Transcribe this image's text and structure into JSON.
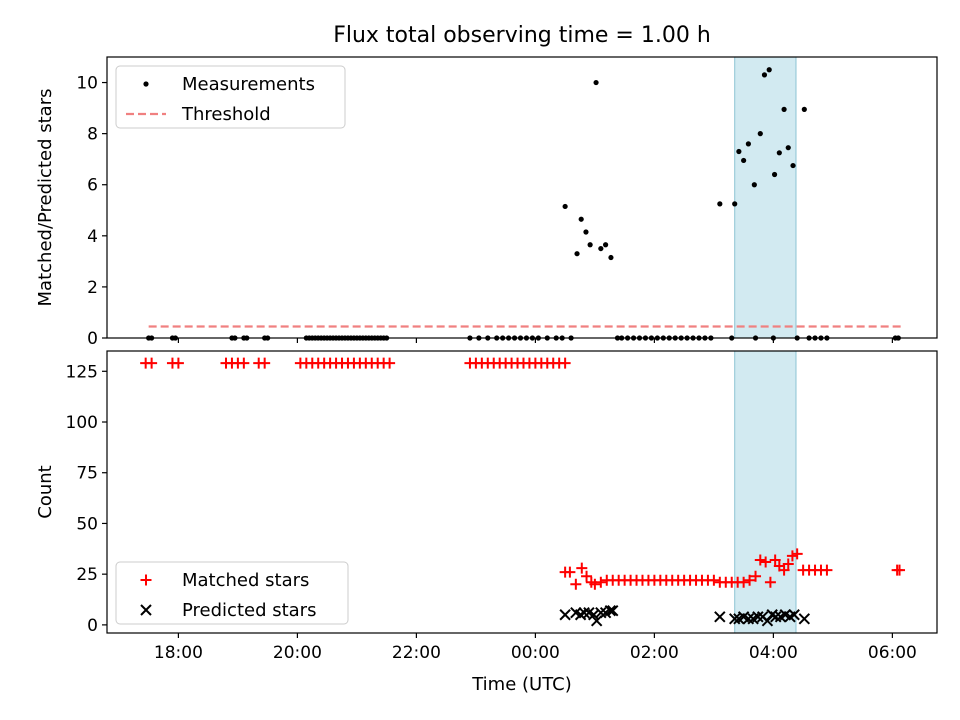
{
  "chart_data": {
    "type": "scatter",
    "title": "Flux total observing time = 1.00 h",
    "xlabel": "Time (UTC)",
    "x_unit": "hours since 00:00 UTC",
    "xlim": [
      -7.2,
      6.75
    ],
    "x_ticks": [
      {
        "value": -6,
        "label": "18:00"
      },
      {
        "value": -4,
        "label": "20:00"
      },
      {
        "value": -2,
        "label": "22:00"
      },
      {
        "value": 0,
        "label": "00:00"
      },
      {
        "value": 2,
        "label": "02:00"
      },
      {
        "value": 4,
        "label": "04:00"
      },
      {
        "value": 6,
        "label": "06:00"
      }
    ],
    "highlight_band": {
      "x_start": 3.35,
      "x_end": 4.38,
      "color": "#add8e6"
    },
    "panels": [
      {
        "name": "ratio",
        "ylabel": "Matched/Predicted stars",
        "ylim": [
          0,
          11
        ],
        "y_ticks": [
          0,
          2,
          4,
          6,
          8,
          10
        ],
        "legend": [
          "Measurements",
          "Threshold"
        ],
        "legend_position": "upper left",
        "threshold": {
          "value": 0.45,
          "x_start": -6.5,
          "x_end": 6.15,
          "color": "#f08080",
          "style": "dashed"
        },
        "series": [
          {
            "name": "Measurements",
            "marker": "dot",
            "color": "#000000",
            "points": [
              [
                -6.5,
                0
              ],
              [
                -6.45,
                0
              ],
              [
                -6.1,
                0
              ],
              [
                -6.05,
                0
              ],
              [
                -5.1,
                0
              ],
              [
                -5.05,
                0
              ],
              [
                -4.9,
                0
              ],
              [
                -4.85,
                0
              ],
              [
                -4.55,
                0
              ],
              [
                -4.5,
                0
              ],
              [
                -3.85,
                0
              ],
              [
                -3.8,
                0
              ],
              [
                -3.75,
                0
              ],
              [
                -3.7,
                0
              ],
              [
                -3.65,
                0
              ],
              [
                -3.6,
                0
              ],
              [
                -3.55,
                0
              ],
              [
                -3.5,
                0
              ],
              [
                -3.45,
                0
              ],
              [
                -3.4,
                0
              ],
              [
                -3.35,
                0
              ],
              [
                -3.3,
                0
              ],
              [
                -3.25,
                0
              ],
              [
                -3.2,
                0
              ],
              [
                -3.15,
                0
              ],
              [
                -3.1,
                0
              ],
              [
                -3.05,
                0
              ],
              [
                -3.0,
                0
              ],
              [
                -2.95,
                0
              ],
              [
                -2.9,
                0
              ],
              [
                -2.85,
                0
              ],
              [
                -2.8,
                0
              ],
              [
                -2.75,
                0
              ],
              [
                -2.7,
                0
              ],
              [
                -2.65,
                0
              ],
              [
                -2.6,
                0
              ],
              [
                -2.55,
                0
              ],
              [
                -2.5,
                0
              ],
              [
                -1.1,
                0
              ],
              [
                -0.95,
                0
              ],
              [
                -0.8,
                0
              ],
              [
                -0.65,
                0
              ],
              [
                -0.55,
                0
              ],
              [
                -0.45,
                0
              ],
              [
                -0.35,
                0
              ],
              [
                -0.25,
                0
              ],
              [
                -0.15,
                0
              ],
              [
                -0.05,
                0
              ],
              [
                0.05,
                0
              ],
              [
                0.2,
                0
              ],
              [
                0.35,
                0
              ],
              [
                0.45,
                0
              ],
              [
                0.6,
                0
              ],
              [
                0.5,
                5.15
              ],
              [
                0.7,
                3.3
              ],
              [
                0.77,
                4.65
              ],
              [
                0.85,
                4.15
              ],
              [
                0.92,
                3.65
              ],
              [
                1.02,
                10.0
              ],
              [
                1.1,
                3.5
              ],
              [
                1.18,
                3.65
              ],
              [
                1.27,
                3.15
              ],
              [
                1.38,
                0
              ],
              [
                1.45,
                0
              ],
              [
                1.55,
                0
              ],
              [
                1.65,
                0
              ],
              [
                1.75,
                0
              ],
              [
                1.85,
                0
              ],
              [
                1.95,
                0
              ],
              [
                2.05,
                0
              ],
              [
                2.15,
                0
              ],
              [
                2.25,
                0
              ],
              [
                2.35,
                0
              ],
              [
                2.45,
                0
              ],
              [
                2.55,
                0
              ],
              [
                2.65,
                0
              ],
              [
                2.75,
                0
              ],
              [
                2.85,
                0
              ],
              [
                2.95,
                0
              ],
              [
                3.1,
                5.25
              ],
              [
                3.35,
                5.25
              ],
              [
                3.42,
                7.3
              ],
              [
                3.5,
                6.95
              ],
              [
                3.58,
                7.6
              ],
              [
                3.68,
                6.0
              ],
              [
                3.78,
                8.0
              ],
              [
                3.85,
                10.3
              ],
              [
                3.93,
                10.5
              ],
              [
                4.02,
                6.4
              ],
              [
                4.1,
                7.25
              ],
              [
                4.18,
                8.95
              ],
              [
                4.25,
                7.45
              ],
              [
                4.33,
                6.75
              ],
              [
                4.52,
                8.95
              ],
              [
                3.3,
                0
              ],
              [
                3.7,
                0
              ],
              [
                4.0,
                0
              ],
              [
                4.4,
                0
              ],
              [
                4.6,
                0
              ],
              [
                4.7,
                0
              ],
              [
                4.8,
                0
              ],
              [
                4.9,
                0
              ],
              [
                6.05,
                0
              ],
              [
                6.1,
                0
              ]
            ]
          }
        ]
      },
      {
        "name": "counts",
        "ylabel": "Count",
        "ylim": [
          -4,
          135
        ],
        "y_ticks": [
          0,
          25,
          50,
          75,
          100,
          125
        ],
        "legend": [
          "Matched stars",
          "Predicted stars"
        ],
        "legend_position": "lower left",
        "series": [
          {
            "name": "Matched stars",
            "marker": "plus",
            "color": "#ff0000",
            "points": [
              [
                -6.55,
                129
              ],
              [
                -6.45,
                129
              ],
              [
                -6.1,
                129
              ],
              [
                -6.0,
                129
              ],
              [
                -5.2,
                129
              ],
              [
                -5.1,
                129
              ],
              [
                -5.0,
                129
              ],
              [
                -4.9,
                129
              ],
              [
                -4.65,
                129
              ],
              [
                -4.55,
                129
              ],
              [
                -3.95,
                129
              ],
              [
                -3.85,
                129
              ],
              [
                -3.75,
                129
              ],
              [
                -3.65,
                129
              ],
              [
                -3.55,
                129
              ],
              [
                -3.45,
                129
              ],
              [
                -3.35,
                129
              ],
              [
                -3.25,
                129
              ],
              [
                -3.15,
                129
              ],
              [
                -3.05,
                129
              ],
              [
                -2.95,
                129
              ],
              [
                -2.85,
                129
              ],
              [
                -2.75,
                129
              ],
              [
                -2.65,
                129
              ],
              [
                -2.55,
                129
              ],
              [
                -2.45,
                129
              ],
              [
                -1.1,
                129
              ],
              [
                -1.0,
                129
              ],
              [
                -0.9,
                129
              ],
              [
                -0.8,
                129
              ],
              [
                -0.7,
                129
              ],
              [
                -0.6,
                129
              ],
              [
                -0.5,
                129
              ],
              [
                -0.4,
                129
              ],
              [
                -0.3,
                129
              ],
              [
                -0.2,
                129
              ],
              [
                -0.1,
                129
              ],
              [
                0.0,
                129
              ],
              [
                0.1,
                129
              ],
              [
                0.2,
                129
              ],
              [
                0.3,
                129
              ],
              [
                0.4,
                129
              ],
              [
                0.5,
                129
              ],
              [
                0.5,
                26
              ],
              [
                0.58,
                26
              ],
              [
                0.68,
                20
              ],
              [
                0.78,
                28
              ],
              [
                0.86,
                24
              ],
              [
                0.94,
                21
              ],
              [
                1.0,
                20
              ],
              [
                1.1,
                21
              ],
              [
                1.2,
                22
              ],
              [
                1.3,
                22
              ],
              [
                1.4,
                22
              ],
              [
                1.5,
                22
              ],
              [
                1.6,
                22
              ],
              [
                1.7,
                22
              ],
              [
                1.8,
                22
              ],
              [
                1.9,
                22
              ],
              [
                2.0,
                22
              ],
              [
                2.1,
                22
              ],
              [
                2.2,
                22
              ],
              [
                2.3,
                22
              ],
              [
                2.4,
                22
              ],
              [
                2.5,
                22
              ],
              [
                2.6,
                22
              ],
              [
                2.7,
                22
              ],
              [
                2.8,
                22
              ],
              [
                2.9,
                22
              ],
              [
                3.0,
                22
              ],
              [
                3.1,
                21
              ],
              [
                3.2,
                21
              ],
              [
                3.3,
                21
              ],
              [
                3.4,
                21
              ],
              [
                3.5,
                21
              ],
              [
                3.6,
                22
              ],
              [
                3.7,
                24
              ],
              [
                3.78,
                32
              ],
              [
                3.87,
                31
              ],
              [
                3.95,
                21
              ],
              [
                4.03,
                32
              ],
              [
                4.1,
                29
              ],
              [
                4.18,
                27
              ],
              [
                4.25,
                30
              ],
              [
                4.32,
                34
              ],
              [
                4.4,
                35
              ],
              [
                4.5,
                27
              ],
              [
                4.6,
                27
              ],
              [
                4.7,
                27
              ],
              [
                4.8,
                27
              ],
              [
                4.9,
                27
              ],
              [
                6.08,
                27
              ],
              [
                6.12,
                27
              ]
            ]
          },
          {
            "name": "Predicted stars",
            "marker": "x",
            "color": "#000000",
            "points": [
              [
                0.5,
                5
              ],
              [
                0.68,
                6
              ],
              [
                0.76,
                5
              ],
              [
                0.82,
                6
              ],
              [
                0.9,
                6
              ],
              [
                0.98,
                5
              ],
              [
                1.03,
                2
              ],
              [
                1.1,
                6
              ],
              [
                1.18,
                6
              ],
              [
                1.26,
                7
              ],
              [
                1.3,
                7
              ],
              [
                3.1,
                4
              ],
              [
                3.35,
                3
              ],
              [
                3.42,
                3
              ],
              [
                3.5,
                4
              ],
              [
                3.58,
                3
              ],
              [
                3.66,
                3
              ],
              [
                3.74,
                4
              ],
              [
                3.82,
                4
              ],
              [
                3.9,
                2
              ],
              [
                3.98,
                5
              ],
              [
                4.04,
                4
              ],
              [
                4.12,
                4
              ],
              [
                4.2,
                5
              ],
              [
                4.28,
                4
              ],
              [
                4.35,
                5
              ],
              [
                4.52,
                3
              ]
            ]
          }
        ]
      }
    ]
  }
}
